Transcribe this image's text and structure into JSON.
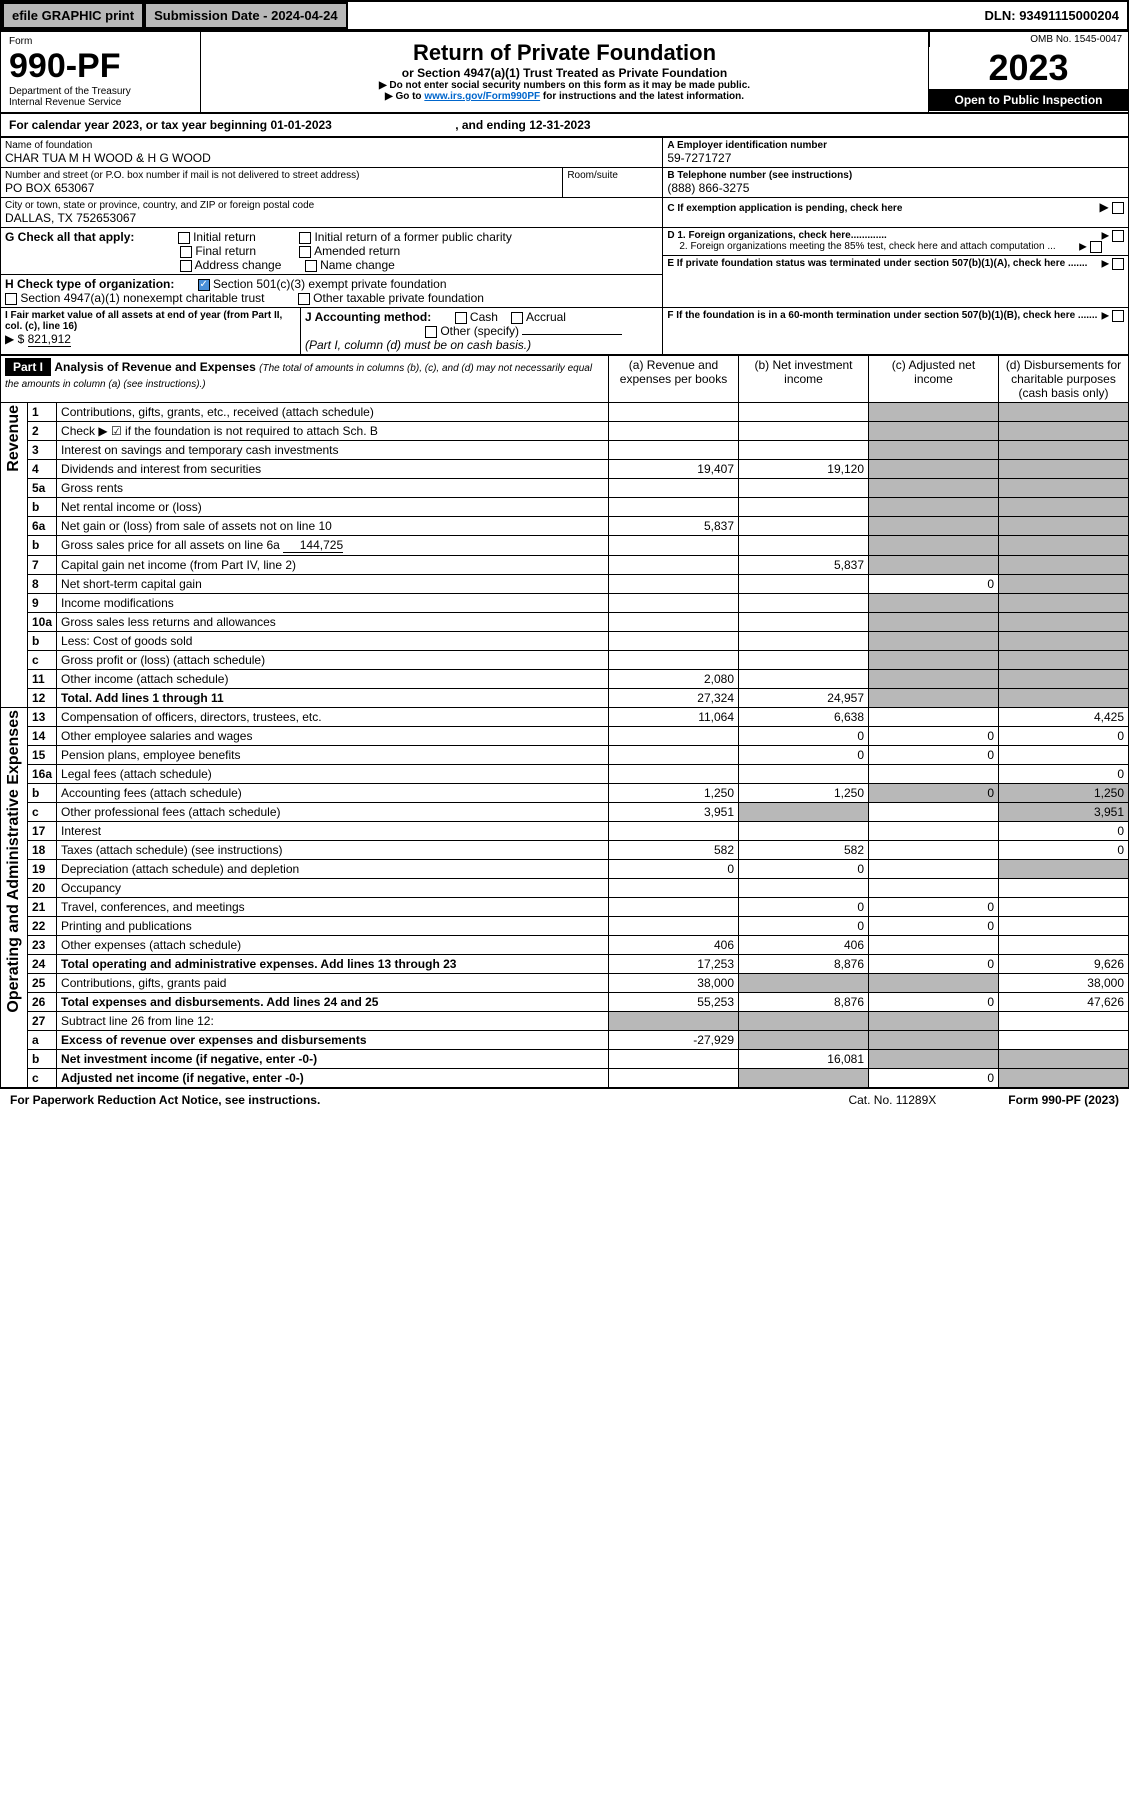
{
  "topbar": {
    "efile": "efile GRAPHIC print",
    "submission_label": "Submission Date - 2024-04-24",
    "dln": "DLN: 93491115000204"
  },
  "header": {
    "form_label": "Form",
    "form_number": "990-PF",
    "dept": "Department of the Treasury",
    "irs": "Internal Revenue Service",
    "title": "Return of Private Foundation",
    "subtitle": "or Section 4947(a)(1) Trust Treated as Private Foundation",
    "note1": "Do not enter social security numbers on this form as it may be made public.",
    "note2_pre": "Go to ",
    "note2_link": "www.irs.gov/Form990PF",
    "note2_post": " for instructions and the latest information.",
    "omb": "OMB No. 1545-0047",
    "year": "2023",
    "open": "Open to Public Inspection"
  },
  "calendar": {
    "text_pre": "For calendar year 2023, or tax year beginning ",
    "begin": "01-01-2023",
    "text_mid": " , and ending ",
    "end": "12-31-2023"
  },
  "entity": {
    "name_label": "Name of foundation",
    "name": "CHAR TUA M H WOOD & H G WOOD",
    "addr_label": "Number and street (or P.O. box number if mail is not delivered to street address)",
    "addr": "PO BOX 653067",
    "room_label": "Room/suite",
    "city_label": "City or town, state or province, country, and ZIP or foreign postal code",
    "city": "DALLAS, TX  752653067",
    "ein_label": "A Employer identification number",
    "ein": "59-7271727",
    "phone_label": "B Telephone number (see instructions)",
    "phone": "(888) 866-3275",
    "c_label": "C If exemption application is pending, check here",
    "d1_label": "D 1. Foreign organizations, check here.............",
    "d2_label": "2. Foreign organizations meeting the 85% test, check here and attach computation ...",
    "e_label": "E If private foundation status was terminated under section 507(b)(1)(A), check here .......",
    "f_label": "F If the foundation is in a 60-month termination under section 507(b)(1)(B), check here .......",
    "g_label": "G Check all that apply:",
    "g_opts": [
      "Initial return",
      "Initial return of a former public charity",
      "Final return",
      "Amended return",
      "Address change",
      "Name change"
    ],
    "h_label": "H Check type of organization:",
    "h_opt1": "Section 501(c)(3) exempt private foundation",
    "h_opt2": "Section 4947(a)(1) nonexempt charitable trust",
    "h_opt3": "Other taxable private foundation",
    "i_label": "I Fair market value of all assets at end of year (from Part II, col. (c), line 16)",
    "i_arrow": "$",
    "i_value": "821,912",
    "j_label": "J Accounting method:",
    "j_opts": [
      "Cash",
      "Accrual"
    ],
    "j_other": "Other (specify)",
    "j_note": "(Part I, column (d) must be on cash basis.)"
  },
  "part1": {
    "label": "Part I",
    "title": "Analysis of Revenue and Expenses",
    "title_note": "(The total of amounts in columns (b), (c), and (d) may not necessarily equal the amounts in column (a) (see instructions).)",
    "col_a": "(a) Revenue and expenses per books",
    "col_b": "(b) Net investment income",
    "col_c": "(c) Adjusted net income",
    "col_d": "(d) Disbursements for charitable purposes (cash basis only)",
    "revenue_label": "Revenue",
    "expenses_label": "Operating and Administrative Expenses"
  },
  "rows": [
    {
      "n": "1",
      "label": "Contributions, gifts, grants, etc., received (attach schedule)",
      "a": "",
      "b": "",
      "c": "",
      "d": ""
    },
    {
      "n": "2",
      "label": "Check ▶ ☑ if the foundation is not required to attach Sch. B",
      "a": "",
      "b": "",
      "c": "",
      "d": ""
    },
    {
      "n": "3",
      "label": "Interest on savings and temporary cash investments",
      "a": "",
      "b": "",
      "c": "",
      "d": ""
    },
    {
      "n": "4",
      "label": "Dividends and interest from securities",
      "a": "19,407",
      "b": "19,120",
      "c": "",
      "d": ""
    },
    {
      "n": "5a",
      "label": "Gross rents",
      "a": "",
      "b": "",
      "c": "",
      "d": ""
    },
    {
      "n": "b",
      "label": "Net rental income or (loss)",
      "a": "",
      "b": "",
      "c": "",
      "d": ""
    },
    {
      "n": "6a",
      "label": "Net gain or (loss) from sale of assets not on line 10",
      "a": "5,837",
      "b": "",
      "c": "",
      "d": ""
    },
    {
      "n": "b",
      "label": "Gross sales price for all assets on line 6a",
      "inline": "144,725",
      "a": "",
      "b": "",
      "c": "",
      "d": ""
    },
    {
      "n": "7",
      "label": "Capital gain net income (from Part IV, line 2)",
      "a": "",
      "b": "5,837",
      "c": "",
      "d": ""
    },
    {
      "n": "8",
      "label": "Net short-term capital gain",
      "a": "",
      "b": "",
      "c": "0",
      "d": ""
    },
    {
      "n": "9",
      "label": "Income modifications",
      "a": "",
      "b": "",
      "c": "",
      "d": ""
    },
    {
      "n": "10a",
      "label": "Gross sales less returns and allowances",
      "a": "",
      "b": "",
      "c": "",
      "d": ""
    },
    {
      "n": "b",
      "label": "Less: Cost of goods sold",
      "a": "",
      "b": "",
      "c": "",
      "d": ""
    },
    {
      "n": "c",
      "label": "Gross profit or (loss) (attach schedule)",
      "a": "",
      "b": "",
      "c": "",
      "d": ""
    },
    {
      "n": "11",
      "label": "Other income (attach schedule)",
      "a": "2,080",
      "b": "",
      "c": "",
      "d": ""
    },
    {
      "n": "12",
      "label": "Total. Add lines 1 through 11",
      "bold": true,
      "a": "27,324",
      "b": "24,957",
      "c": "",
      "d": ""
    },
    {
      "n": "13",
      "label": "Compensation of officers, directors, trustees, etc.",
      "a": "11,064",
      "b": "6,638",
      "c": "",
      "d": "4,425"
    },
    {
      "n": "14",
      "label": "Other employee salaries and wages",
      "a": "",
      "b": "0",
      "c": "0",
      "d": "0"
    },
    {
      "n": "15",
      "label": "Pension plans, employee benefits",
      "a": "",
      "b": "0",
      "c": "0",
      "d": ""
    },
    {
      "n": "16a",
      "label": "Legal fees (attach schedule)",
      "a": "",
      "b": "",
      "c": "",
      "d": "0"
    },
    {
      "n": "b",
      "label": "Accounting fees (attach schedule)",
      "a": "1,250",
      "b": "1,250",
      "c": "0",
      "d": "1,250"
    },
    {
      "n": "c",
      "label": "Other professional fees (attach schedule)",
      "a": "3,951",
      "b": "",
      "c": "",
      "d": "3,951"
    },
    {
      "n": "17",
      "label": "Interest",
      "a": "",
      "b": "",
      "c": "",
      "d": "0"
    },
    {
      "n": "18",
      "label": "Taxes (attach schedule) (see instructions)",
      "a": "582",
      "b": "582",
      "c": "",
      "d": "0"
    },
    {
      "n": "19",
      "label": "Depreciation (attach schedule) and depletion",
      "a": "0",
      "b": "0",
      "c": "",
      "d": ""
    },
    {
      "n": "20",
      "label": "Occupancy",
      "a": "",
      "b": "",
      "c": "",
      "d": ""
    },
    {
      "n": "21",
      "label": "Travel, conferences, and meetings",
      "a": "",
      "b": "0",
      "c": "0",
      "d": ""
    },
    {
      "n": "22",
      "label": "Printing and publications",
      "a": "",
      "b": "0",
      "c": "0",
      "d": ""
    },
    {
      "n": "23",
      "label": "Other expenses (attach schedule)",
      "a": "406",
      "b": "406",
      "c": "",
      "d": ""
    },
    {
      "n": "24",
      "label": "Total operating and administrative expenses. Add lines 13 through 23",
      "bold": true,
      "a": "17,253",
      "b": "8,876",
      "c": "0",
      "d": "9,626"
    },
    {
      "n": "25",
      "label": "Contributions, gifts, grants paid",
      "a": "38,000",
      "b": "",
      "c": "",
      "d": "38,000"
    },
    {
      "n": "26",
      "label": "Total expenses and disbursements. Add lines 24 and 25",
      "bold": true,
      "a": "55,253",
      "b": "8,876",
      "c": "0",
      "d": "47,626"
    },
    {
      "n": "27",
      "label": "Subtract line 26 from line 12:",
      "a": "",
      "b": "",
      "c": "",
      "d": ""
    },
    {
      "n": "a",
      "label": "Excess of revenue over expenses and disbursements",
      "bold": true,
      "a": "-27,929",
      "b": "",
      "c": "",
      "d": ""
    },
    {
      "n": "b",
      "label": "Net investment income (if negative, enter -0-)",
      "bold": true,
      "a": "",
      "b": "16,081",
      "c": "",
      "d": ""
    },
    {
      "n": "c",
      "label": "Adjusted net income (if negative, enter -0-)",
      "bold": true,
      "a": "",
      "b": "",
      "c": "0",
      "d": ""
    }
  ],
  "footer": {
    "left": "For Paperwork Reduction Act Notice, see instructions.",
    "mid": "Cat. No. 11289X",
    "right": "Form 990-PF (2023)"
  }
}
